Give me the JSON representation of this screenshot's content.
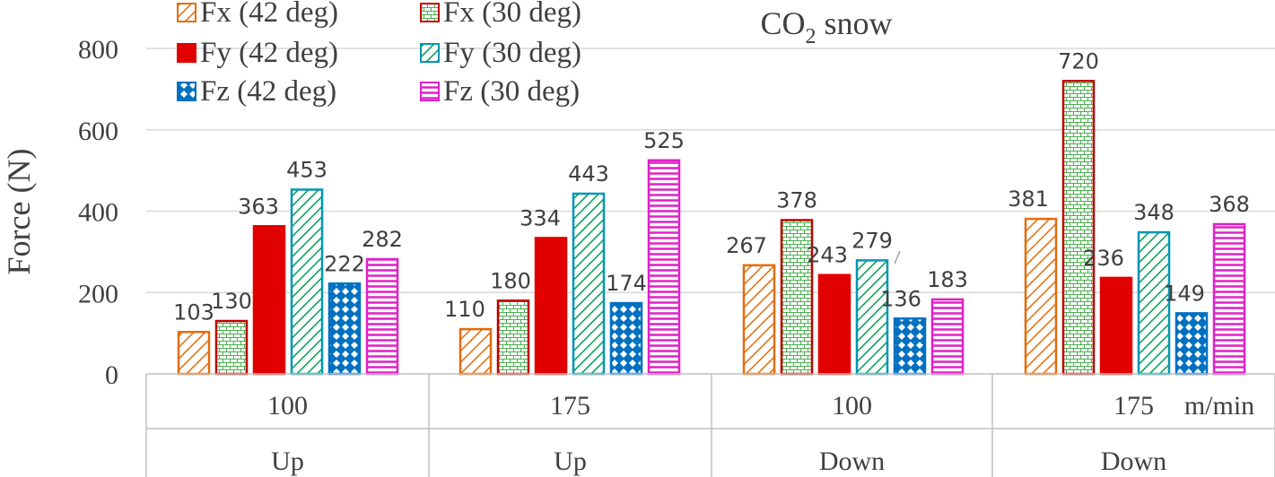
{
  "chart_data": {
    "type": "bar",
    "title": {
      "main": "CO",
      "sub": "2",
      "tail": " snow"
    },
    "ylabel": "Force (N)",
    "xunit": "m/min",
    "ylim": [
      0,
      800
    ],
    "yticks": [
      0,
      200,
      400,
      600,
      800
    ],
    "grid": true,
    "legend_position": "top-left",
    "categories": [
      {
        "speed": "100",
        "direction": "Up"
      },
      {
        "speed": "175",
        "direction": "Up"
      },
      {
        "speed": "100",
        "direction": "Down"
      },
      {
        "speed": "175",
        "direction": "Down"
      }
    ],
    "series": [
      {
        "name": "Fx (42 deg)",
        "pattern": "diag-orange",
        "values": [
          103,
          110,
          267,
          381
        ],
        "labels": [
          "103",
          "110",
          "267",
          "381"
        ]
      },
      {
        "name": "Fx (30 deg)",
        "pattern": "brick-green",
        "values": [
          130,
          180,
          378,
          720
        ],
        "labels": [
          "130",
          "180",
          "378",
          "720"
        ]
      },
      {
        "name": "Fy (42 deg)",
        "pattern": "solid-red",
        "values": [
          363,
          334,
          243,
          236
        ],
        "labels": [
          "363",
          "334",
          "243",
          "236"
        ]
      },
      {
        "name": "Fy (30 deg)",
        "pattern": "diag-green",
        "values": [
          453,
          443,
          279,
          348
        ],
        "labels": [
          "453",
          "443",
          "279",
          "348"
        ]
      },
      {
        "name": "Fz (42 deg)",
        "pattern": "diamond-blue",
        "values": [
          222,
          174,
          136,
          149
        ],
        "labels": [
          "222",
          "174",
          "136",
          "149"
        ]
      },
      {
        "name": "Fz (30 deg)",
        "pattern": "hline-magenta",
        "values": [
          282,
          525,
          183,
          368
        ],
        "labels": [
          "282",
          "525",
          "183",
          "368"
        ]
      }
    ],
    "colors": {
      "orange": "#e46c0a",
      "red_border": "#c00000",
      "red_fill": "#e00000",
      "green": "#00a050",
      "teal_border": "#0096b4",
      "blue": "#0070c0",
      "magenta": "#e020c8",
      "grid": "#d9d9d9",
      "axis": "#bfbfbf",
      "text": "#404040"
    }
  }
}
